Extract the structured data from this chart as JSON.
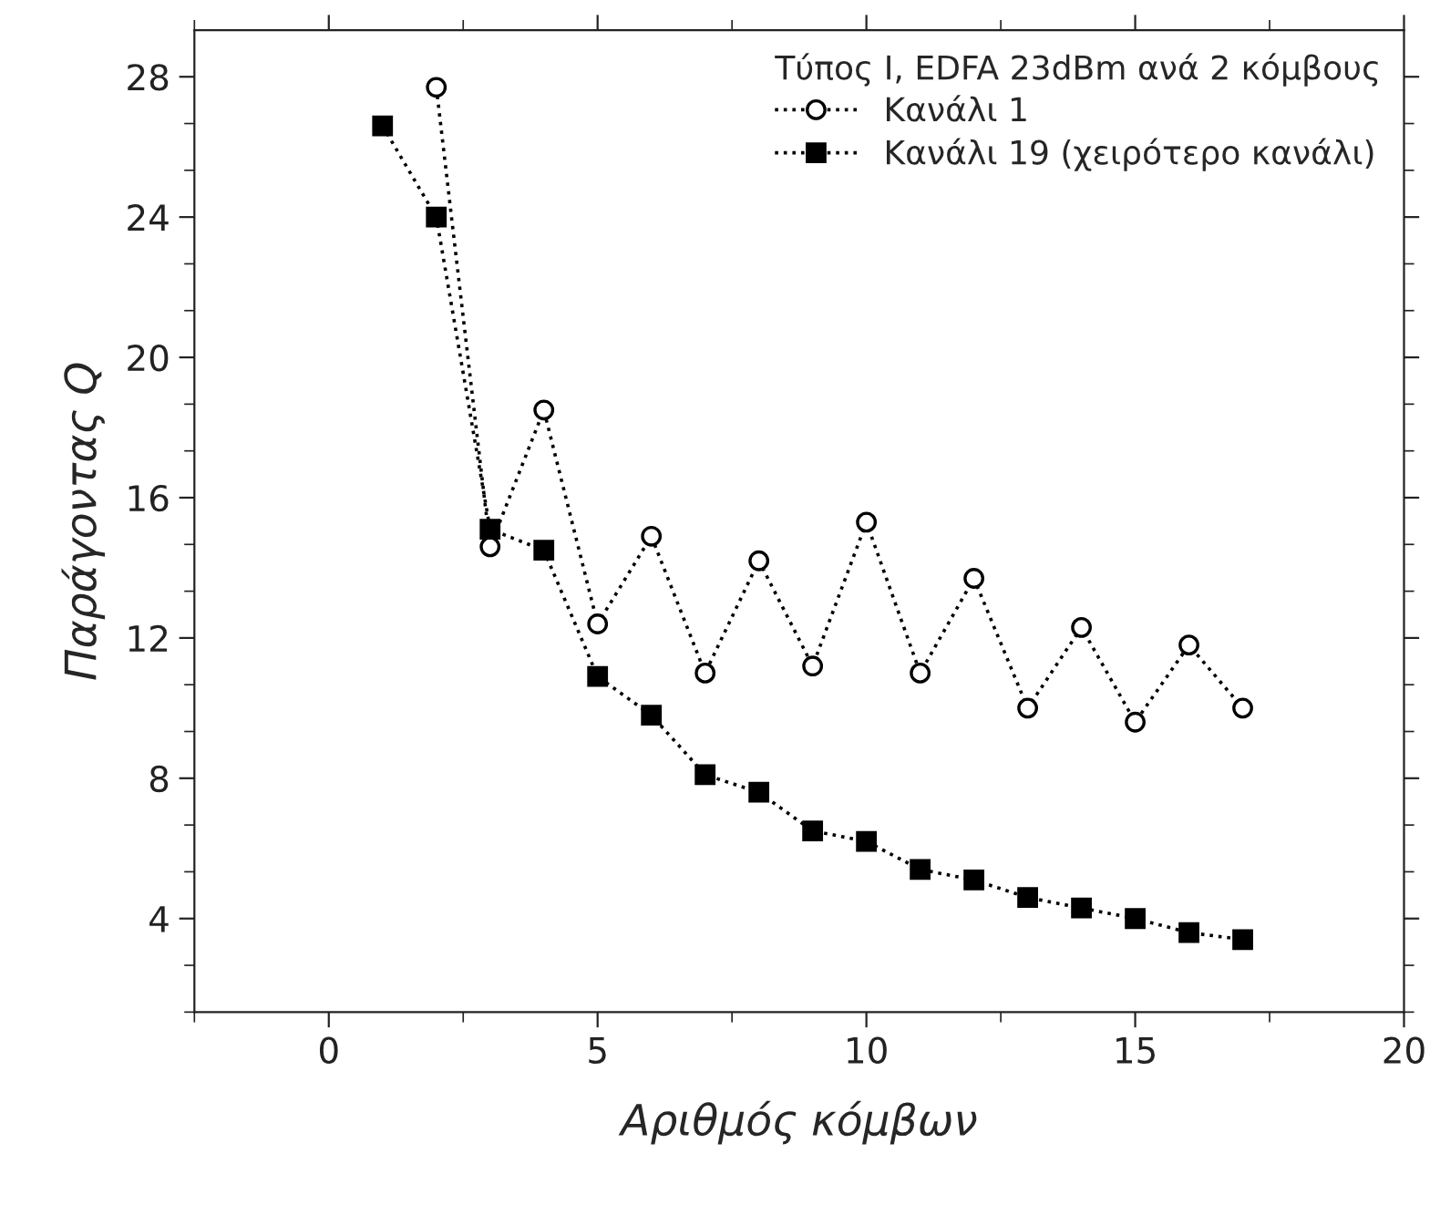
{
  "chart_data": {
    "type": "line",
    "xlabel": "Αριθμός κόμβων",
    "ylabel": "Παράγοντας Q",
    "legend_title": "Τύπος Ι, EDFA 23dBm ανά 2 κόμβους",
    "xlim": [
      -2.5,
      20
    ],
    "xticks": [
      0,
      5,
      10,
      15,
      20
    ],
    "ylim": [
      1.33,
      29.33
    ],
    "yticks": [
      4,
      8,
      12,
      16,
      20,
      24,
      28
    ],
    "line_style": "dotted",
    "legend": "top right",
    "grid": false,
    "series": [
      {
        "name": "Κανάλι 1",
        "color": "#000000",
        "marker": "circle",
        "x": [
          2,
          3,
          4,
          5,
          6,
          7,
          8,
          9,
          10,
          11,
          12,
          13,
          14,
          15,
          16,
          17
        ],
        "values": [
          27.7,
          14.6,
          18.5,
          12.4,
          14.9,
          11.0,
          14.2,
          11.2,
          15.3,
          11.0,
          13.7,
          10.0,
          12.3,
          9.6,
          11.8,
          10.0
        ]
      },
      {
        "name": "Κανάλι 19 (χειρότερο κανάλι)",
        "color": "#000000",
        "marker": "square",
        "x": [
          1,
          2,
          3,
          4,
          5,
          6,
          7,
          8,
          9,
          10,
          11,
          12,
          13,
          14,
          15,
          16,
          17
        ],
        "values": [
          26.6,
          24.0,
          15.1,
          14.5,
          10.9,
          9.8,
          8.1,
          7.6,
          6.5,
          6.2,
          5.4,
          5.1,
          4.6,
          4.3,
          4.0,
          3.6,
          3.4
        ]
      }
    ]
  }
}
